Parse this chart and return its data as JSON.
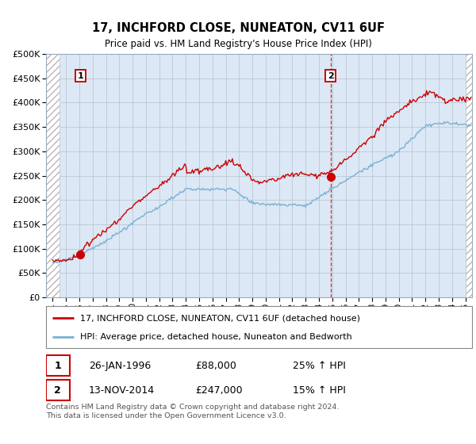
{
  "title": "17, INCHFORD CLOSE, NUNEATON, CV11 6UF",
  "subtitle": "Price paid vs. HM Land Registry's House Price Index (HPI)",
  "legend_line1": "17, INCHFORD CLOSE, NUNEATON, CV11 6UF (detached house)",
  "legend_line2": "HPI: Average price, detached house, Nuneaton and Bedworth",
  "footnote": "Contains HM Land Registry data © Crown copyright and database right 2024.\nThis data is licensed under the Open Government Licence v3.0.",
  "marker1_label": "1",
  "marker1_date": "26-JAN-1996",
  "marker1_price": "£88,000",
  "marker1_hpi": "25% ↑ HPI",
  "marker2_label": "2",
  "marker2_date": "13-NOV-2014",
  "marker2_price": "£247,000",
  "marker2_hpi": "15% ↑ HPI",
  "price_color": "#cc0000",
  "hpi_color": "#7ab0d4",
  "marker_year1": 1996.08,
  "marker_year2": 2014.87,
  "marker1_y": 88000,
  "marker2_y": 247000,
  "ylim": [
    0,
    500000
  ],
  "xlim_start": 1993.5,
  "xlim_end": 2025.5,
  "bg_color": "#dce8f5",
  "grid_color": "#b0bec8"
}
